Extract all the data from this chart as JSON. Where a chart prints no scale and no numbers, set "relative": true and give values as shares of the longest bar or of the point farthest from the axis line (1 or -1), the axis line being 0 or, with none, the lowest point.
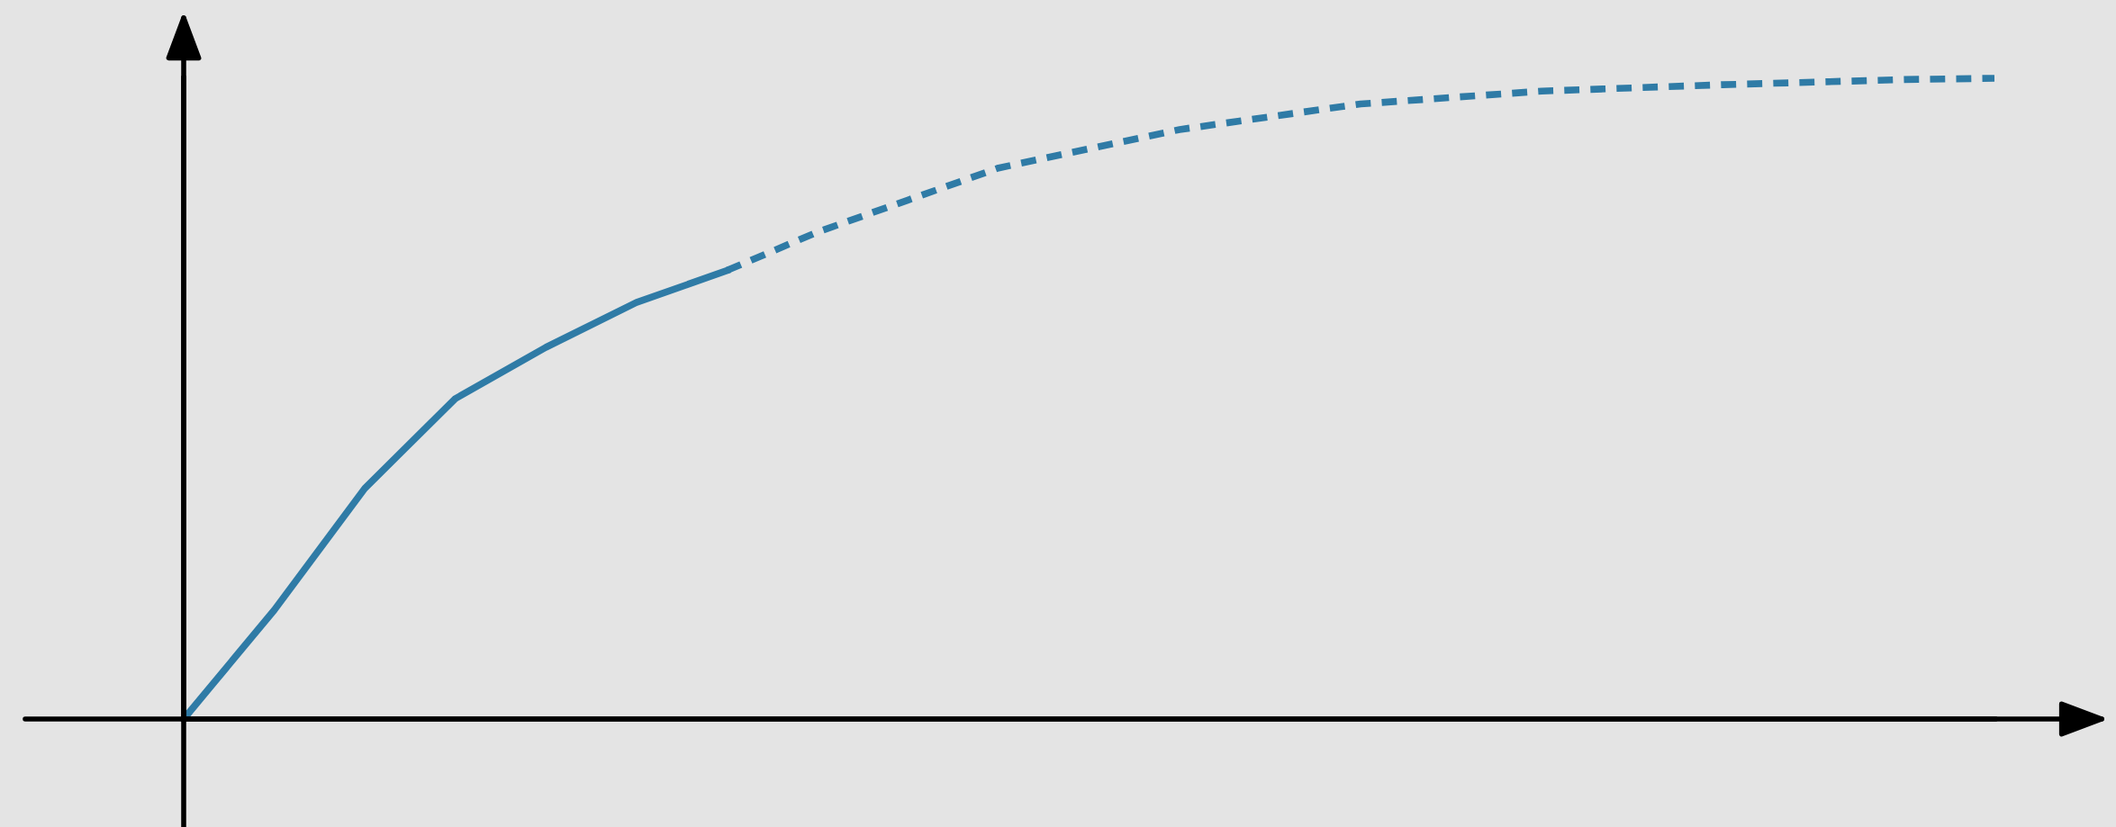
{
  "chart_data": {
    "type": "line",
    "relative": true,
    "categories": [
      null,
      null,
      null,
      null,
      null,
      null,
      null,
      null,
      null,
      null,
      null,
      null,
      null,
      null,
      null,
      null,
      null,
      null,
      null,
      null,
      null
    ],
    "series": [
      {
        "color": "#2f7ba6",
        "line_style": "solid",
        "values": [
          0,
          0.17,
          0.36,
          0.5,
          0.58,
          0.65,
          0.7,
          null,
          null,
          null,
          null,
          null,
          null,
          null,
          null,
          null,
          null,
          null,
          null,
          null,
          null
        ]
      },
      {
        "color": "#2f7ba6",
        "line_style": "dashed",
        "values": [
          null,
          null,
          null,
          null,
          null,
          null,
          0.7,
          0.76,
          0.81,
          0.86,
          0.89,
          0.92,
          0.94,
          0.96,
          0.97,
          0.98,
          0.985,
          0.99,
          0.994,
          0.998,
          1
        ]
      }
    ]
  }
}
